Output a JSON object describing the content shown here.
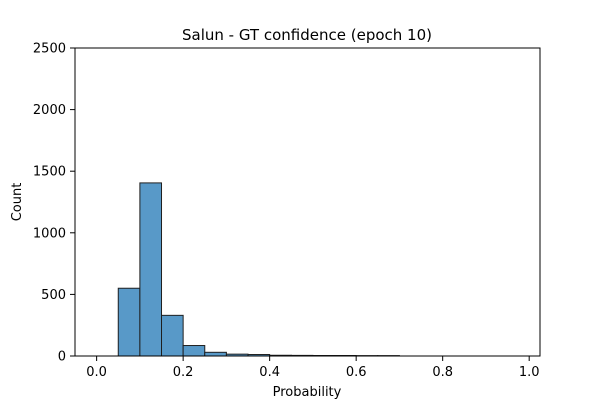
{
  "chart_data": {
    "type": "bar",
    "title": "Salun - GT confidence (epoch 10)",
    "xlabel": "Probability",
    "ylabel": "Count",
    "xlim": [
      -0.05,
      1.025
    ],
    "ylim": [
      0,
      2500
    ],
    "xticks": [
      0.0,
      0.2,
      0.4,
      0.6,
      0.8,
      1.0
    ],
    "xtick_labels": [
      "0.0",
      "0.2",
      "0.4",
      "0.6",
      "0.8",
      "1.0"
    ],
    "yticks": [
      0,
      500,
      1000,
      1500,
      2000,
      2500
    ],
    "ytick_labels": [
      "0",
      "500",
      "1000",
      "1500",
      "2000",
      "2500"
    ],
    "bins": [
      {
        "x0": 0.05,
        "x1": 0.1,
        "count": 550
      },
      {
        "x0": 0.1,
        "x1": 0.15,
        "count": 1405
      },
      {
        "x0": 0.15,
        "x1": 0.2,
        "count": 330
      },
      {
        "x0": 0.2,
        "x1": 0.25,
        "count": 85
      },
      {
        "x0": 0.25,
        "x1": 0.3,
        "count": 30
      },
      {
        "x0": 0.3,
        "x1": 0.35,
        "count": 15
      },
      {
        "x0": 0.35,
        "x1": 0.4,
        "count": 12
      },
      {
        "x0": 0.4,
        "x1": 0.45,
        "count": 6
      },
      {
        "x0": 0.45,
        "x1": 0.5,
        "count": 5
      },
      {
        "x0": 0.5,
        "x1": 0.55,
        "count": 4
      },
      {
        "x0": 0.55,
        "x1": 0.6,
        "count": 4
      },
      {
        "x0": 0.6,
        "x1": 0.65,
        "count": 3
      },
      {
        "x0": 0.65,
        "x1": 0.7,
        "count": 3
      }
    ],
    "bar_color": "#5899c8",
    "edge_color": "#1f1f1f",
    "grid": false,
    "legend": false
  }
}
